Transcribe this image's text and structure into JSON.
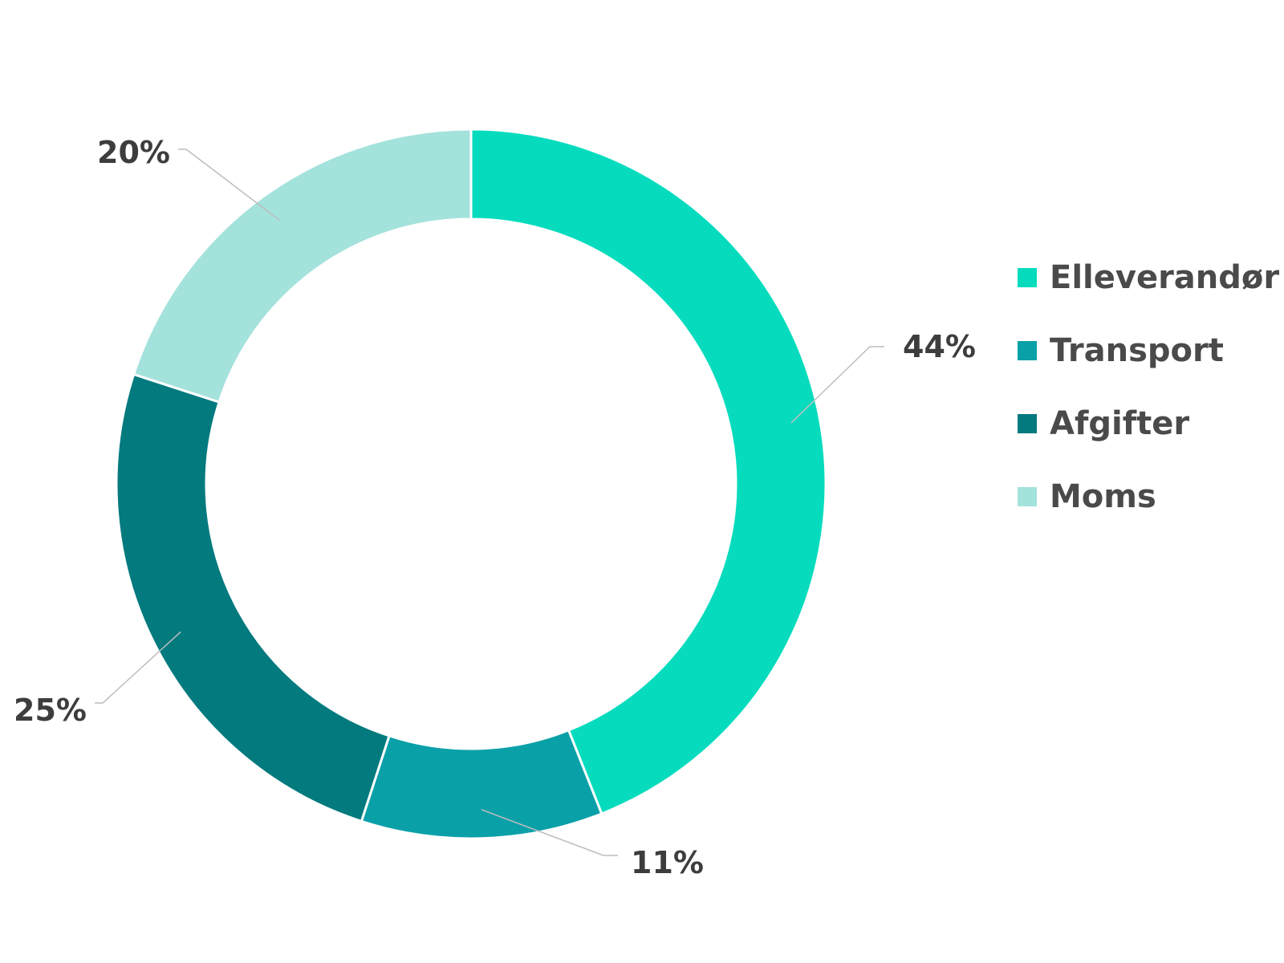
{
  "chart_data": {
    "type": "pie",
    "variant": "donut",
    "categories": [
      "Elleverandør",
      "Transport",
      "Afgifter",
      "Moms"
    ],
    "values": [
      44,
      11,
      25,
      20
    ],
    "labels": [
      "44%",
      "11%",
      "25%",
      "20%"
    ],
    "colors": [
      "#06dcbd",
      "#0aa0a8",
      "#027a7e",
      "#a4e2dc"
    ],
    "legend_position": "right"
  }
}
